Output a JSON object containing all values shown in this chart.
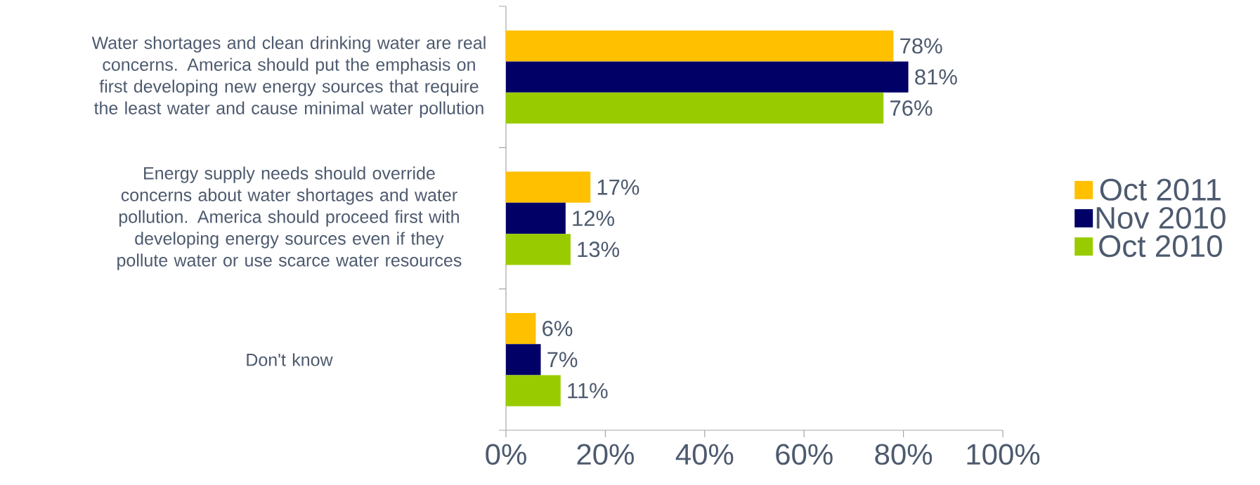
{
  "chart_data": {
    "type": "bar",
    "orientation": "horizontal",
    "categories": [
      "Water shortages and clean drinking water are real concerns.  America should put the emphasis on first developing new energy sources that require the least water and cause minimal water pollution",
      "Energy supply needs should override concerns about water shortages and water pollution. America should proceed first with developing energy sources even if they pollute water or use scarce water resources",
      "Don't know"
    ],
    "series": [
      {
        "name": "Oct 2011",
        "color": "#ffc000",
        "values": [
          78,
          17,
          6
        ],
        "value_labels": [
          "78%",
          "17%",
          "6%"
        ]
      },
      {
        "name": "Nov 2010",
        "color": "#000066",
        "values": [
          81,
          12,
          7
        ],
        "value_labels": [
          "81%",
          "12%",
          "7%"
        ]
      },
      {
        "name": "Oct 2010",
        "color": "#99cc00",
        "values": [
          76,
          13,
          11
        ],
        "value_labels": [
          "76%",
          "13%",
          "11%"
        ]
      }
    ],
    "xlim": [
      0,
      100
    ],
    "xticks": [
      {
        "value": 0,
        "label": "0%"
      },
      {
        "value": 20,
        "label": "20%"
      },
      {
        "value": 40,
        "label": "40%"
      },
      {
        "value": 60,
        "label": "60%"
      },
      {
        "value": 80,
        "label": "80%"
      },
      {
        "value": 100,
        "label": "100%"
      }
    ],
    "legend": "right"
  }
}
